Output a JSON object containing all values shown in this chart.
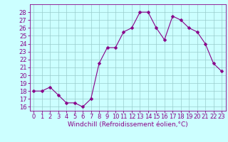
{
  "x": [
    0,
    1,
    2,
    3,
    4,
    5,
    6,
    7,
    8,
    9,
    10,
    11,
    12,
    13,
    14,
    15,
    16,
    17,
    18,
    19,
    20,
    21,
    22,
    23
  ],
  "y": [
    18,
    18,
    18.5,
    17.5,
    16.5,
    16.5,
    16,
    17,
    21.5,
    23.5,
    23.5,
    25.5,
    26,
    28,
    28,
    26,
    24.5,
    27.5,
    27,
    26,
    25.5,
    24,
    21.5,
    20.5
  ],
  "xlabel": "Windchill (Refroidissement éolien,°C)",
  "ylim": [
    15.5,
    29
  ],
  "xlim": [
    -0.5,
    23.5
  ],
  "yticks": [
    16,
    17,
    18,
    19,
    20,
    21,
    22,
    23,
    24,
    25,
    26,
    27,
    28
  ],
  "xticks": [
    0,
    1,
    2,
    3,
    4,
    5,
    6,
    7,
    8,
    9,
    10,
    11,
    12,
    13,
    14,
    15,
    16,
    17,
    18,
    19,
    20,
    21,
    22,
    23
  ],
  "line_color": "#880088",
  "marker_color": "#880088",
  "bg_color": "#ccffff",
  "grid_color": "#99cccc",
  "label_fontsize": 6.5,
  "tick_fontsize": 6,
  "marker_size": 2.5,
  "linewidth": 0.8
}
